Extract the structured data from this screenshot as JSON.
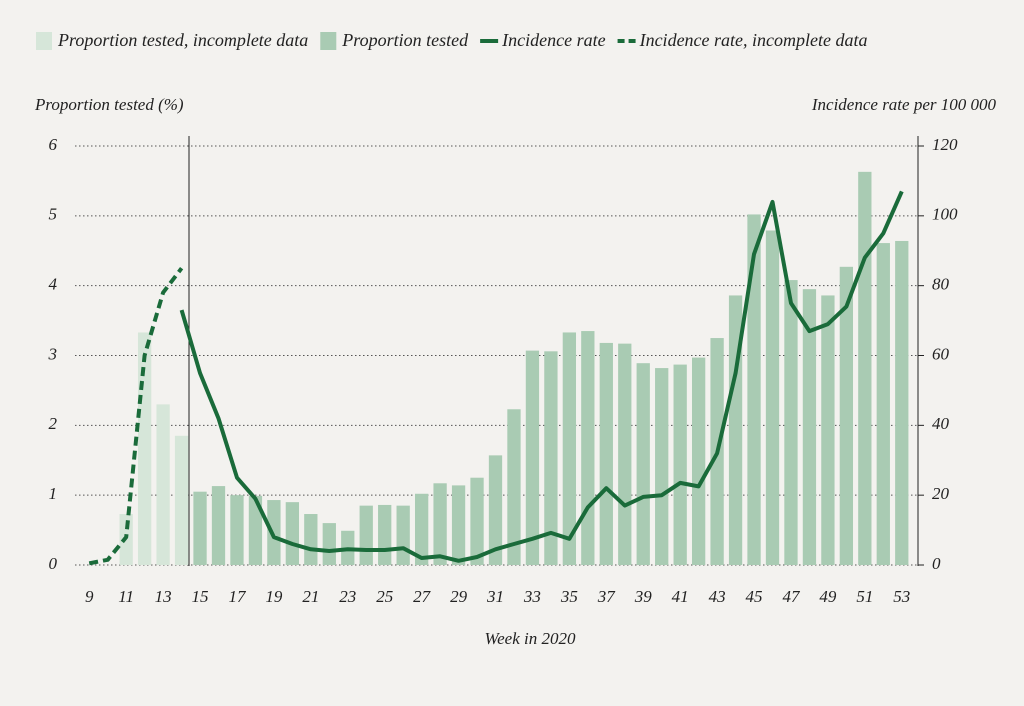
{
  "chart_data": {
    "type": "combo",
    "y_label": "Proportion tested (%)",
    "y2_label": "Incidence rate per 100 000",
    "x_label": "Week in 2020",
    "x": [
      9,
      10,
      11,
      12,
      13,
      14,
      15,
      16,
      17,
      18,
      19,
      20,
      21,
      22,
      23,
      24,
      25,
      26,
      27,
      28,
      29,
      30,
      31,
      32,
      33,
      34,
      35,
      36,
      37,
      38,
      39,
      40,
      41,
      42,
      43,
      44,
      45,
      46,
      47,
      48,
      49,
      50,
      51,
      52,
      53
    ],
    "xlim": [
      8.5,
      53.5
    ],
    "xticks": [
      9,
      11,
      13,
      15,
      17,
      19,
      21,
      23,
      25,
      27,
      29,
      31,
      33,
      35,
      37,
      39,
      41,
      43,
      45,
      47,
      49,
      51,
      53
    ],
    "ylim": [
      0,
      6
    ],
    "yticks": [
      0,
      1,
      2,
      3,
      4,
      5,
      6
    ],
    "y2lim": [
      0,
      120
    ],
    "y2ticks": [
      0,
      20,
      40,
      60,
      80,
      100,
      120
    ],
    "grid": true,
    "series": [
      {
        "name": "Proportion tested, incomplete data",
        "kind": "bar",
        "color": "#d6e6d9",
        "values": [
          null,
          null,
          0.73,
          3.33,
          2.3,
          1.85,
          null,
          null,
          null,
          null,
          null,
          null,
          null,
          null,
          null,
          null,
          null,
          null,
          null,
          null,
          null,
          null,
          null,
          null,
          null,
          null,
          null,
          null,
          null,
          null,
          null,
          null,
          null,
          null,
          null,
          null,
          null,
          null,
          null,
          null,
          null,
          null,
          null,
          null,
          null
        ]
      },
      {
        "name": "Proportion tested",
        "kind": "bar",
        "color": "#a9cbb3",
        "values": [
          null,
          null,
          null,
          null,
          null,
          null,
          1.05,
          1.13,
          1.0,
          0.99,
          0.93,
          0.9,
          0.73,
          0.6,
          0.49,
          0.85,
          0.86,
          0.85,
          1.02,
          1.17,
          1.14,
          1.25,
          1.57,
          2.23,
          3.07,
          3.06,
          3.33,
          3.35,
          3.18,
          3.17,
          2.89,
          2.82,
          2.87,
          2.97,
          3.25,
          3.86,
          5.02,
          4.79,
          4.08,
          3.95,
          3.86,
          4.27,
          5.63,
          4.61,
          4.64
        ]
      },
      {
        "name": "Incidence rate",
        "kind": "line",
        "axis": "y2",
        "color": "#1a6b3a",
        "dash": false,
        "values": [
          null,
          null,
          null,
          null,
          null,
          73,
          55,
          42,
          25,
          19,
          8,
          6,
          4.5,
          4,
          4.5,
          4.3,
          4.3,
          4.8,
          2,
          2.5,
          1.2,
          2.3,
          4.5,
          6,
          7.5,
          9.2,
          7.5,
          16.5,
          22,
          17,
          19.5,
          20,
          23.5,
          22.5,
          32,
          55,
          89,
          104,
          75,
          67,
          69,
          74,
          88,
          95,
          107
        ]
      },
      {
        "name": "Incidence rate, incomplete data",
        "kind": "line",
        "axis": "y2",
        "color": "#1a6b3a",
        "dash": true,
        "values": [
          0.5,
          1.5,
          8,
          60,
          78,
          85,
          null,
          null,
          null,
          null,
          null,
          null,
          null,
          null,
          null,
          null,
          null,
          null,
          null,
          null,
          null,
          null,
          null,
          null,
          null,
          null,
          null,
          null,
          null,
          null,
          null,
          null,
          null,
          null,
          null,
          null,
          null,
          null,
          null,
          null,
          null,
          null,
          null,
          null,
          null
        ]
      }
    ]
  }
}
